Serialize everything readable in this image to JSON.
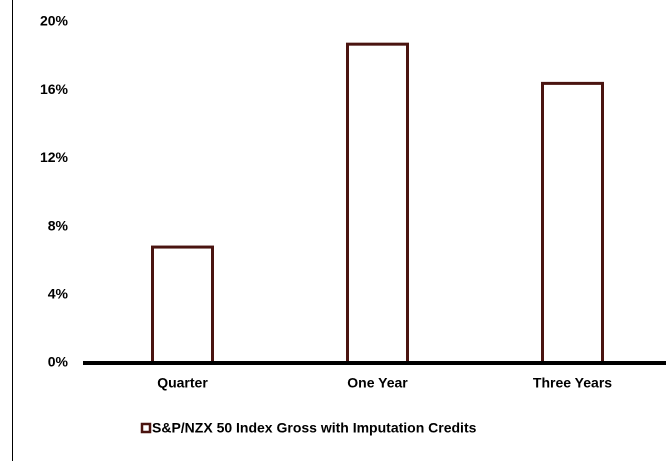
{
  "chart_data": {
    "type": "bar",
    "categories": [
      "Quarter",
      "One Year",
      "Three Years"
    ],
    "series": [
      {
        "name": "S&P/NZX 50 Index Gross with Imputation Credits",
        "color": "#4a1410",
        "values": [
          6.8,
          18.7,
          16.4
        ]
      }
    ],
    "ylim": [
      0,
      20
    ],
    "yticks": [
      {
        "value": 0,
        "label": "0%"
      },
      {
        "value": 4,
        "label": "4%"
      },
      {
        "value": 8,
        "label": "8%"
      },
      {
        "value": 12,
        "label": "12%"
      },
      {
        "value": 16,
        "label": "16%"
      },
      {
        "value": 20,
        "label": "20%"
      }
    ],
    "grid": false,
    "legend": "bottom"
  }
}
